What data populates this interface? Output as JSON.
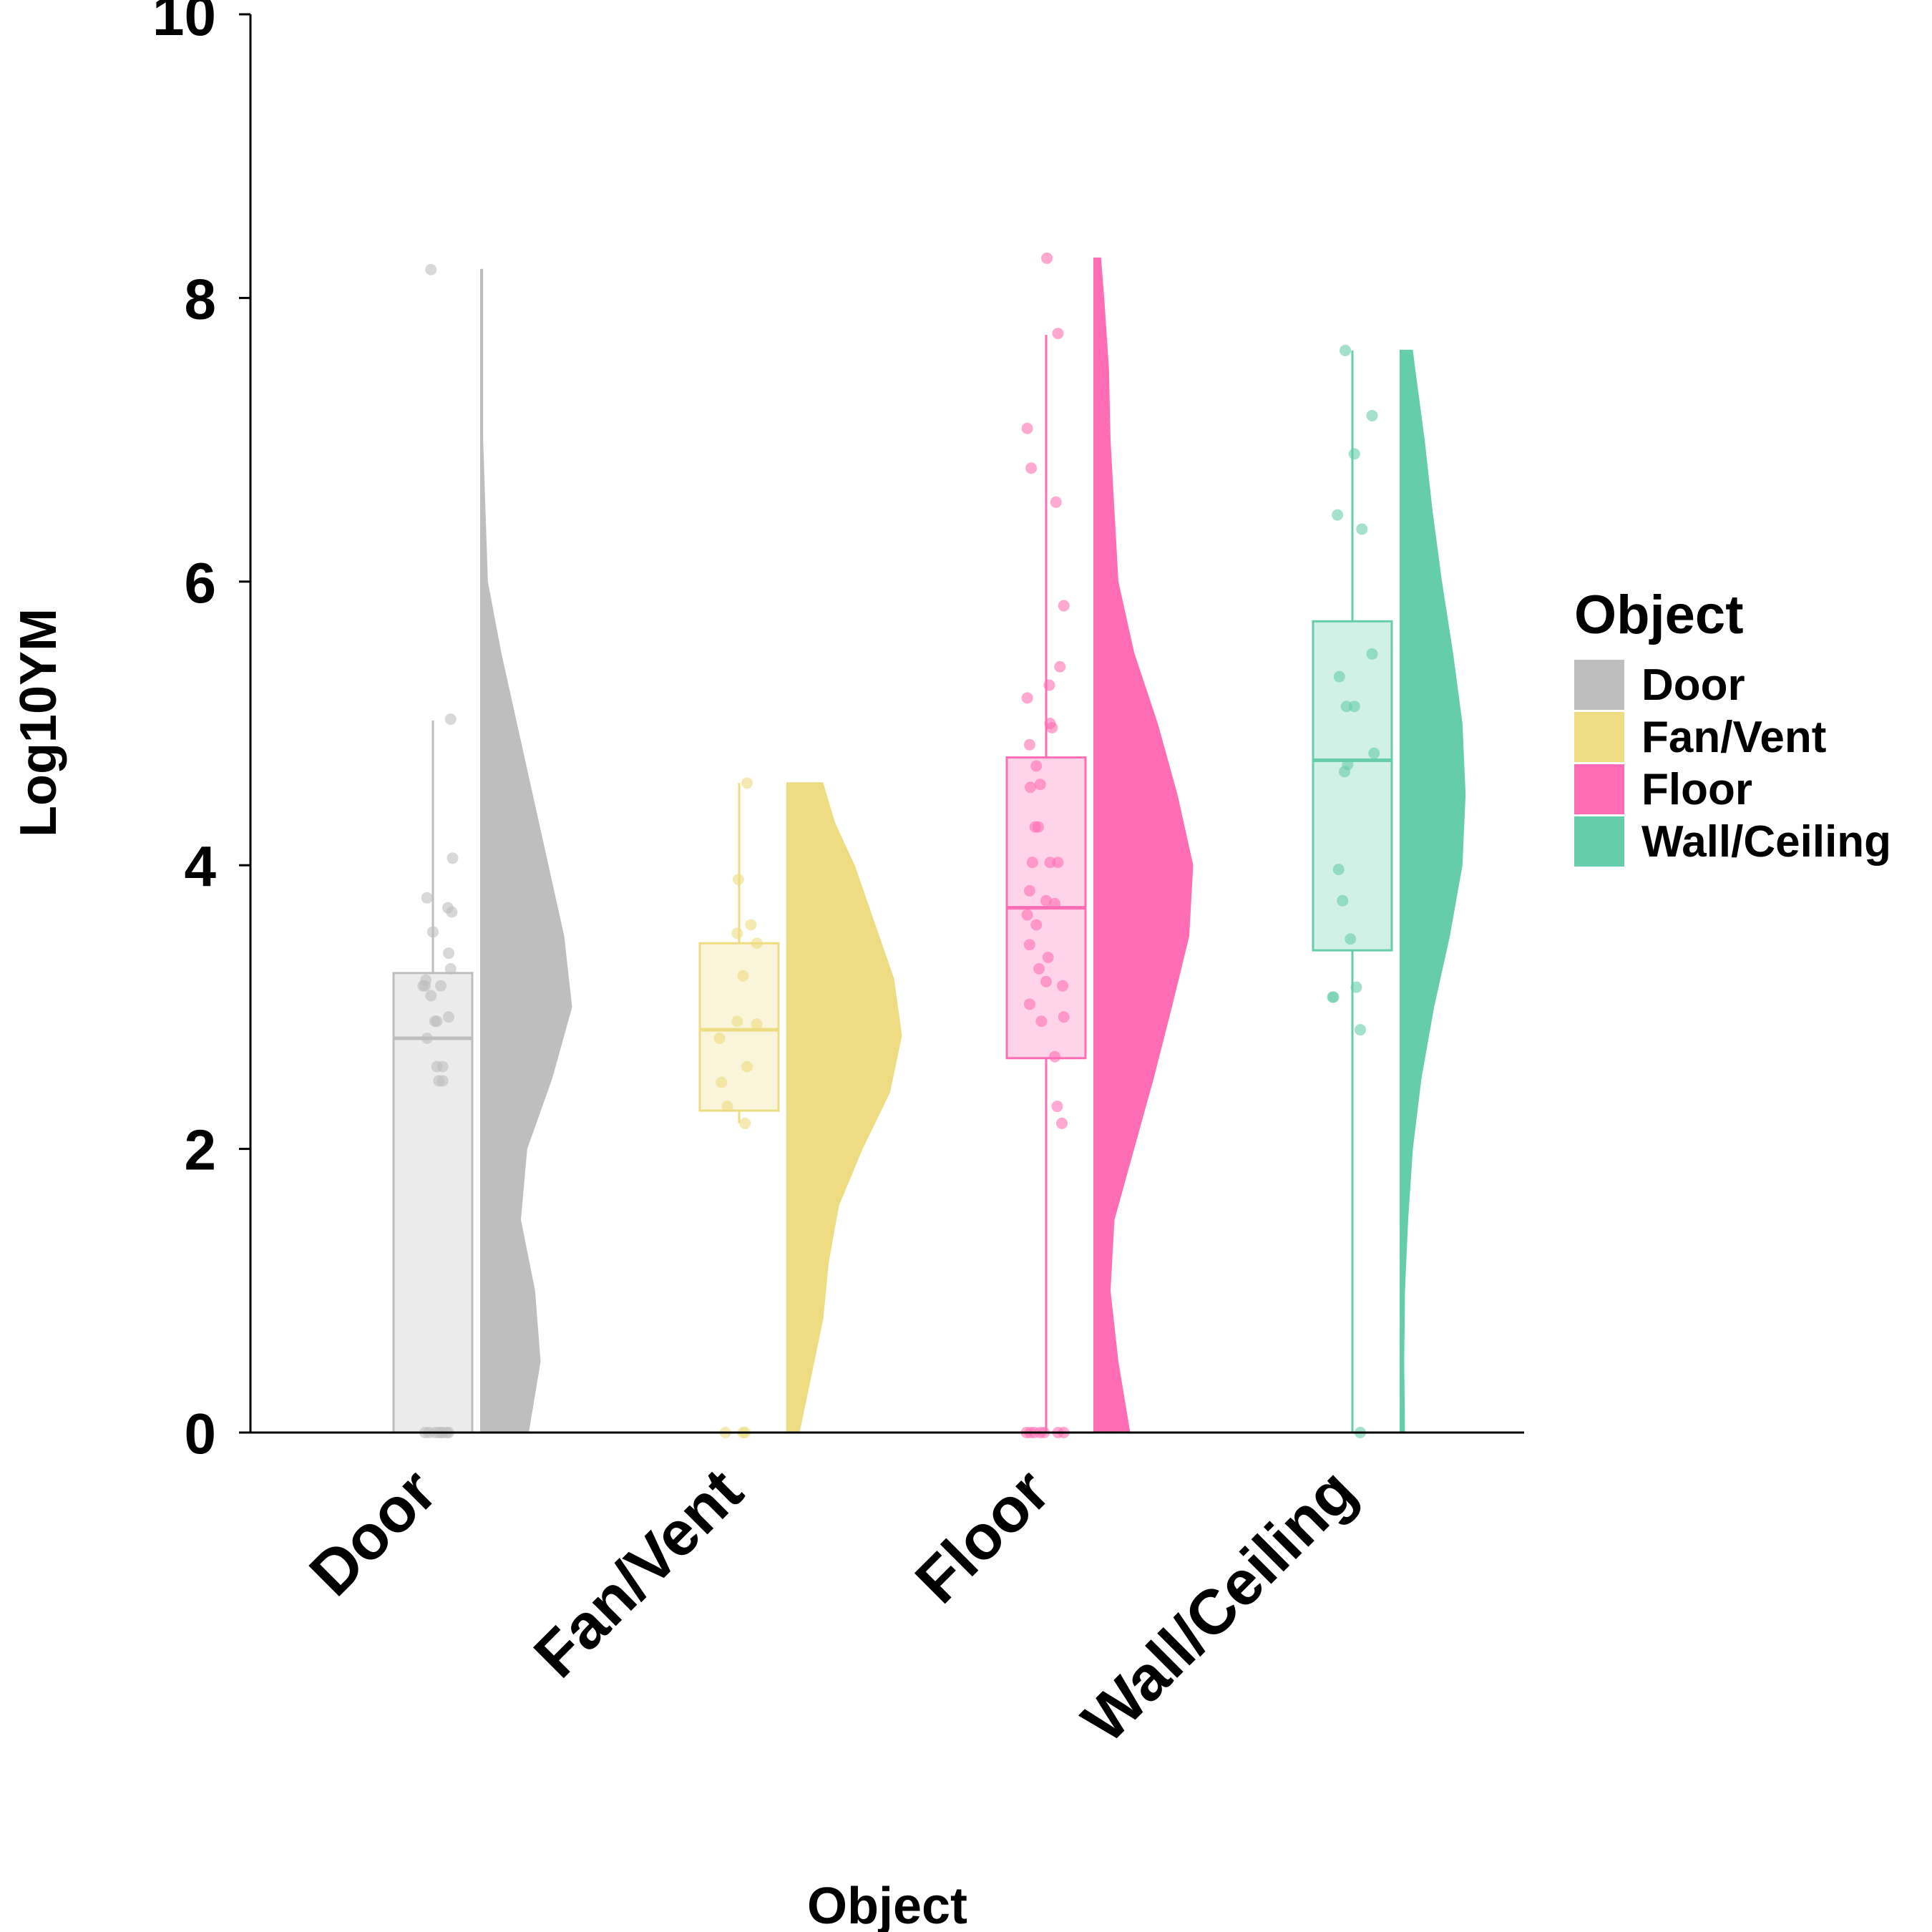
{
  "chart_data": {
    "type": "raincloud",
    "xlabel": "Object",
    "ylabel": "Log10YM",
    "ylim": [
      0,
      10
    ],
    "yticks": [
      "0",
      "2",
      "4",
      "6",
      "8",
      "10"
    ],
    "categories": [
      "Door",
      "Fan/Vent",
      "Floor",
      "Wall/Ceiling"
    ],
    "legend": {
      "title": "Object",
      "position": "right",
      "entries": [
        {
          "label": "Door",
          "color": "#BEBEBE"
        },
        {
          "label": "Fan/Vent",
          "color": "#EEDC82"
        },
        {
          "label": "Floor",
          "color": "#FF6EB4"
        },
        {
          "label": "Wall/Ceiling",
          "color": "#66CDAA"
        }
      ]
    },
    "series": [
      {
        "name": "Door",
        "color": "#BEBEBE",
        "box": {
          "min": 0,
          "q1": 0,
          "median": 2.78,
          "q3": 3.24,
          "max": 5.02
        },
        "violin": [
          [
            0,
            0.6
          ],
          [
            0.5,
            0.75
          ],
          [
            1.0,
            0.68
          ],
          [
            1.5,
            0.5
          ],
          [
            2.0,
            0.58
          ],
          [
            2.5,
            0.9
          ],
          [
            3.0,
            1.15
          ],
          [
            3.5,
            1.05
          ],
          [
            4.0,
            0.85
          ],
          [
            4.5,
            0.65
          ],
          [
            5.0,
            0.45
          ],
          [
            5.5,
            0.25
          ],
          [
            6.0,
            0.08
          ],
          [
            7.0,
            0.02
          ],
          [
            8.2,
            0.02
          ]
        ],
        "points": [
          [
            0,
            0.05
          ],
          [
            0,
            0.15
          ],
          [
            0,
            -0.1
          ],
          [
            0,
            0.25
          ],
          [
            0,
            0.35
          ],
          [
            0,
            0.4
          ],
          [
            0,
            -0.2
          ],
          [
            0,
            0.2
          ],
          [
            2.48,
            0.25
          ],
          [
            2.48,
            0.15
          ],
          [
            2.58,
            0.25
          ],
          [
            2.58,
            0.1
          ],
          [
            2.78,
            -0.15
          ],
          [
            2.9,
            0.05
          ],
          [
            2.9,
            0.1
          ],
          [
            2.93,
            0.4
          ],
          [
            3.08,
            -0.05
          ],
          [
            3.15,
            -0.25
          ],
          [
            3.15,
            -0.2
          ],
          [
            3.15,
            0.2
          ],
          [
            3.19,
            -0.18
          ],
          [
            3.27,
            0.45
          ],
          [
            3.38,
            0.4
          ],
          [
            3.53,
            0.0
          ],
          [
            3.67,
            0.48
          ],
          [
            3.7,
            0.38
          ],
          [
            3.77,
            -0.15
          ],
          [
            4.05,
            0.5
          ],
          [
            5.03,
            0.45
          ],
          [
            8.2,
            -0.05
          ]
        ]
      },
      {
        "name": "Fan/Vent",
        "color": "#EEDC82",
        "box": {
          "min": 2.18,
          "q1": 2.27,
          "median": 2.84,
          "q3": 3.45,
          "max": 4.58
        },
        "violin": [
          [
            0,
            0.15
          ],
          [
            0.4,
            0.3
          ],
          [
            0.8,
            0.45
          ],
          [
            1.2,
            0.52
          ],
          [
            1.6,
            0.65
          ],
          [
            2.0,
            0.95
          ],
          [
            2.4,
            1.3
          ],
          [
            2.8,
            1.45
          ],
          [
            3.2,
            1.35
          ],
          [
            3.6,
            1.1
          ],
          [
            4.0,
            0.85
          ],
          [
            4.3,
            0.6
          ],
          [
            4.58,
            0.45
          ]
        ],
        "points": [
          [
            0,
            -0.35
          ],
          [
            0,
            0.1
          ],
          [
            0,
            0.15
          ],
          [
            2.18,
            0.15
          ],
          [
            2.3,
            -0.3
          ],
          [
            2.47,
            -0.45
          ],
          [
            2.58,
            0.2
          ],
          [
            2.78,
            -0.5
          ],
          [
            2.88,
            0.45
          ],
          [
            2.9,
            -0.05
          ],
          [
            3.22,
            0.1
          ],
          [
            3.45,
            0.45
          ],
          [
            3.52,
            -0.05
          ],
          [
            3.58,
            0.3
          ],
          [
            3.9,
            -0.02
          ],
          [
            4.58,
            0.2
          ]
        ]
      },
      {
        "name": "Floor",
        "color": "#FF6EB4",
        "box": {
          "min": 0,
          "q1": 2.64,
          "median": 3.7,
          "q3": 4.76,
          "max": 7.74
        },
        "violin": [
          [
            0,
            0.45
          ],
          [
            0.5,
            0.3
          ],
          [
            1.0,
            0.2
          ],
          [
            1.5,
            0.25
          ],
          [
            2.0,
            0.5
          ],
          [
            2.5,
            0.75
          ],
          [
            3.0,
            0.98
          ],
          [
            3.5,
            1.2
          ],
          [
            4.0,
            1.25
          ],
          [
            4.5,
            1.05
          ],
          [
            5.0,
            0.8
          ],
          [
            5.5,
            0.5
          ],
          [
            6.0,
            0.3
          ],
          [
            6.5,
            0.25
          ],
          [
            7.0,
            0.2
          ],
          [
            7.5,
            0.18
          ],
          [
            8.0,
            0.12
          ],
          [
            8.28,
            0.08
          ]
        ],
        "points": [
          [
            0,
            -0.5
          ],
          [
            0,
            -0.4
          ],
          [
            0,
            -0.3
          ],
          [
            0,
            -0.15
          ],
          [
            0,
            -0.05
          ],
          [
            0,
            0.3
          ],
          [
            0,
            0.45
          ],
          [
            2.18,
            0.4
          ],
          [
            2.3,
            0.28
          ],
          [
            2.65,
            0.22
          ],
          [
            2.9,
            -0.12
          ],
          [
            2.93,
            0.45
          ],
          [
            3.02,
            -0.42
          ],
          [
            3.15,
            0.42
          ],
          [
            3.18,
            0.0
          ],
          [
            3.27,
            -0.18
          ],
          [
            3.35,
            0.05
          ],
          [
            3.44,
            -0.42
          ],
          [
            3.58,
            -0.25
          ],
          [
            3.65,
            -0.48
          ],
          [
            3.73,
            0.22
          ],
          [
            3.75,
            0.0
          ],
          [
            3.82,
            -0.42
          ],
          [
            4.02,
            -0.35
          ],
          [
            4.02,
            0.1
          ],
          [
            4.02,
            0.3
          ],
          [
            4.27,
            -0.28
          ],
          [
            4.27,
            -0.2
          ],
          [
            4.55,
            -0.4
          ],
          [
            4.57,
            -0.15
          ],
          [
            4.7,
            -0.25
          ],
          [
            4.85,
            -0.42
          ],
          [
            4.97,
            0.15
          ],
          [
            5.0,
            0.1
          ],
          [
            5.27,
            0.08
          ],
          [
            5.18,
            -0.48
          ],
          [
            5.4,
            0.35
          ],
          [
            5.83,
            0.45
          ],
          [
            6.56,
            0.25
          ],
          [
            6.8,
            -0.38
          ],
          [
            7.08,
            -0.48
          ],
          [
            7.75,
            0.3
          ],
          [
            8.28,
            0.02
          ]
        ]
      },
      {
        "name": "Wall/Ceiling",
        "color": "#66CDAA",
        "box": {
          "min": 0,
          "q1": 3.4,
          "median": 4.74,
          "q3": 5.72,
          "max": 7.63
        },
        "violin": [
          [
            0,
            0.05
          ],
          [
            0.5,
            0.04
          ],
          [
            1.0,
            0.05
          ],
          [
            1.5,
            0.09
          ],
          [
            2.0,
            0.15
          ],
          [
            2.5,
            0.26
          ],
          [
            3.0,
            0.42
          ],
          [
            3.5,
            0.62
          ],
          [
            4.0,
            0.78
          ],
          [
            4.5,
            0.82
          ],
          [
            5.0,
            0.78
          ],
          [
            5.5,
            0.66
          ],
          [
            6.0,
            0.52
          ],
          [
            6.5,
            0.4
          ],
          [
            7.0,
            0.3
          ],
          [
            7.5,
            0.18
          ],
          [
            7.63,
            0.15
          ]
        ],
        "points": [
          [
            0,
            0.2
          ],
          [
            2.84,
            0.2
          ],
          [
            3.07,
            -0.5
          ],
          [
            3.07,
            -0.48
          ],
          [
            3.14,
            0.1
          ],
          [
            3.48,
            -0.05
          ],
          [
            3.75,
            -0.25
          ],
          [
            3.97,
            -0.35
          ],
          [
            4.66,
            -0.2
          ],
          [
            4.71,
            -0.12
          ],
          [
            4.79,
            0.55
          ],
          [
            5.12,
            0.05
          ],
          [
            5.12,
            -0.15
          ],
          [
            5.33,
            -0.33
          ],
          [
            5.49,
            0.5
          ],
          [
            6.37,
            0.24
          ],
          [
            6.47,
            -0.38
          ],
          [
            6.9,
            0.05
          ],
          [
            7.17,
            0.5
          ],
          [
            7.63,
            -0.18
          ]
        ]
      }
    ]
  }
}
